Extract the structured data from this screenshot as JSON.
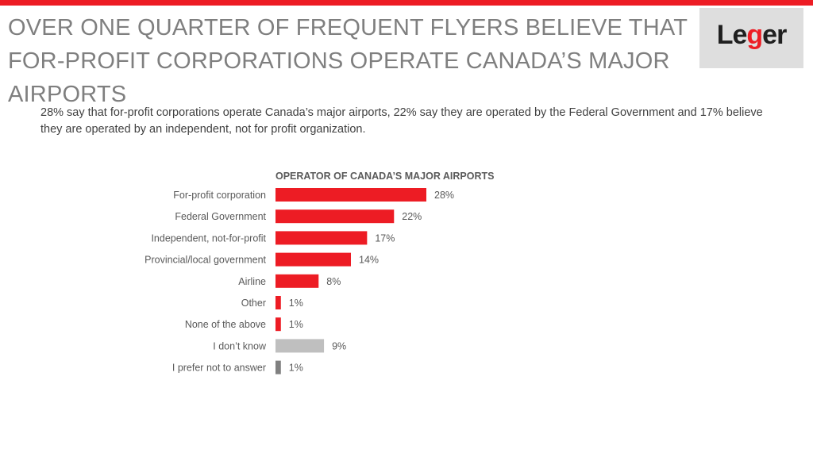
{
  "slide": {
    "headline": "OVER ONE QUARTER OF FREQUENT FLYERS BELIEVE THAT FOR-PROFIT CORPORATIONS OPERATE CANADA’S MAJOR AIRPORTS",
    "subtitle": "28% say that for-profit corporations operate Canada’s major airports, 22% say they are operated by the Federal Government and 17% believe they are operated by an independent, not for profit organization.",
    "accent_color": "#ed1c24"
  },
  "logo": {
    "icon": "leger-logo",
    "text_before": "Le",
    "text_g": "g",
    "text_after": "er"
  },
  "chart_data": {
    "type": "bar",
    "orientation": "horizontal",
    "title": "OPERATOR OF CANADA’S MAJOR AIRPORTS",
    "categories": [
      "For-profit corporation",
      "Federal Government",
      "Independent, not-for-profit",
      "Provincial/local government",
      "Airline",
      "Other",
      "None of the above",
      "I don’t know",
      "I prefer not to answer"
    ],
    "values": [
      28,
      22,
      17,
      14,
      8,
      1,
      1,
      9,
      1
    ],
    "value_labels": [
      "28%",
      "22%",
      "17%",
      "14%",
      "8%",
      "1%",
      "1%",
      "9%",
      "1%"
    ],
    "unit": "%",
    "bar_colors": [
      "#ed1c24",
      "#ed1c24",
      "#ed1c24",
      "#ed1c24",
      "#ed1c24",
      "#ed1c24",
      "#ed1c24",
      "#bfbfbf",
      "#808080"
    ],
    "xlim": [
      0,
      28
    ],
    "grid": false,
    "legend": "none"
  }
}
